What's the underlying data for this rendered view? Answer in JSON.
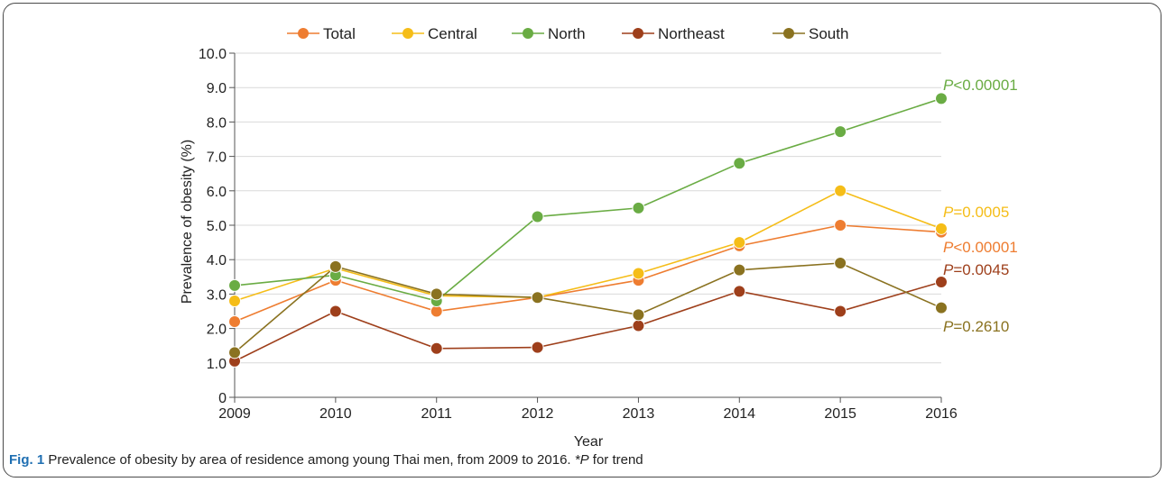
{
  "chart_data": {
    "type": "line",
    "x": [
      "2009",
      "2010",
      "2011",
      "2012",
      "2013",
      "2014",
      "2015",
      "2016"
    ],
    "xlabel": "Year",
    "ylabel": "Prevalence of obesity (%)",
    "ylim": [
      0,
      10
    ],
    "yticks": [
      "0",
      "1.0",
      "2.0",
      "3.0",
      "4.0",
      "5.0",
      "6.0",
      "7.0",
      "8.0",
      "9.0",
      "10.0"
    ],
    "grid": true,
    "legend_position": "top",
    "series": [
      {
        "name": "Total",
        "color": "#ee7d31",
        "values": [
          2.2,
          3.4,
          2.5,
          2.9,
          3.4,
          4.4,
          5.0,
          4.8
        ],
        "p_prefix": "P",
        "p_value": "<0.00001"
      },
      {
        "name": "Central",
        "color": "#f5bd18",
        "values": [
          2.8,
          3.75,
          2.95,
          2.9,
          3.6,
          4.5,
          6.0,
          4.9
        ],
        "p_prefix": "P",
        "p_value": "=0.0005"
      },
      {
        "name": "North",
        "color": "#6aac44",
        "values": [
          3.25,
          3.55,
          2.8,
          5.25,
          5.5,
          6.8,
          7.72,
          8.68
        ],
        "p_prefix": "P",
        "p_value": "<0.00001"
      },
      {
        "name": "Northeast",
        "color": "#9e3f1b",
        "values": [
          1.05,
          2.5,
          1.42,
          1.45,
          2.08,
          3.08,
          2.5,
          3.35
        ],
        "p_prefix": "P",
        "p_value": "=0.0045"
      },
      {
        "name": "South",
        "color": "#8a7220",
        "values": [
          1.3,
          3.8,
          3.0,
          2.9,
          2.4,
          3.7,
          3.9,
          2.6
        ],
        "p_prefix": "P",
        "p_value": "=0.2610"
      }
    ]
  },
  "caption": {
    "label": "Fig. 1",
    "text": " Prevalence of obesity by area of residence among young Thai men, from 2009 to 2016. ",
    "note_star": "*",
    "note_italic": "P",
    "note_rest": " for trend"
  }
}
